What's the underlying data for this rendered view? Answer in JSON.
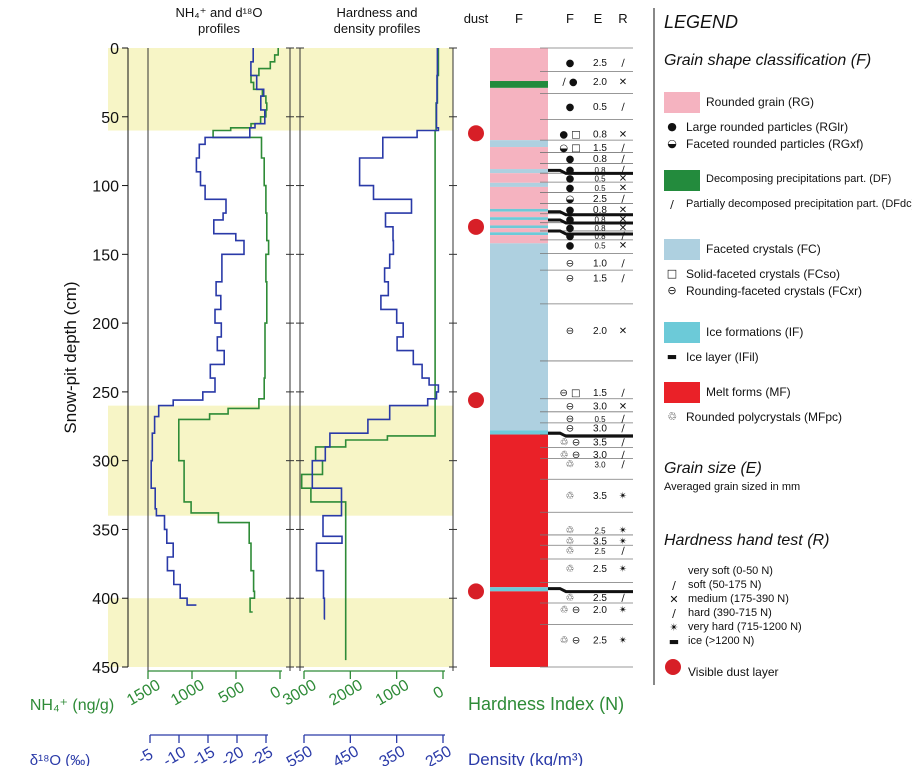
{
  "chart_data": {
    "type": "multi-panel snow-pit profile",
    "axes": {
      "depth_label": "Snow-pit depth (cm)",
      "depth_ticks": [
        0,
        50,
        100,
        150,
        200,
        250,
        300,
        350,
        400,
        450
      ],
      "depth_range": [
        0,
        450
      ],
      "panel1_title": "NH4+ and d18O profiles",
      "panel1_title_line1": "NH₄⁺ and d¹⁸O",
      "panel1_title_line2": "profiles",
      "panel2_title_line1": "Hardness and",
      "panel2_title_line2": "density profiles",
      "nh4_label": "NH₄⁺ (ng/g)",
      "nh4_ticks": [
        "1500",
        "1000",
        "500",
        "0"
      ],
      "nh4_range": [
        1500,
        0
      ],
      "d18o_label": "δ¹⁸O (‰)",
      "d18o_ticks": [
        "-5",
        "-10",
        "-15",
        "-20",
        "-25"
      ],
      "d18o_range": [
        -5,
        -25
      ],
      "hardness_label": "Hardness Index (N)",
      "hardness_ticks": [
        "3000",
        "2000",
        "1000",
        "0"
      ],
      "hardness_range": [
        3000,
        0
      ],
      "density_label": "Density (kg/m³)",
      "density_ticks": [
        "550",
        "450",
        "350",
        "250"
      ],
      "density_range": [
        550,
        250
      ]
    },
    "column_headers": {
      "dust": "dust",
      "f_bar": "F",
      "f": "F",
      "e": "E",
      "r": "R"
    },
    "shaded_depth_bands": [
      [
        0,
        60
      ],
      [
        260,
        340
      ],
      [
        400,
        450
      ]
    ],
    "dust_layers_cm": [
      62,
      130,
      256,
      395
    ],
    "series": [
      {
        "name": "NH4+",
        "unit": "ng/g",
        "color": "#2e8b37",
        "points": [
          [
            0,
            20
          ],
          [
            5,
            60
          ],
          [
            10,
            110
          ],
          [
            15,
            240
          ],
          [
            20,
            330
          ],
          [
            25,
            300
          ],
          [
            30,
            200
          ],
          [
            35,
            160
          ],
          [
            40,
            150
          ],
          [
            45,
            160
          ],
          [
            50,
            220
          ],
          [
            55,
            330
          ],
          [
            58,
            560
          ],
          [
            60,
            760
          ],
          [
            65,
            210
          ],
          [
            80,
            180
          ],
          [
            100,
            160
          ],
          [
            120,
            150
          ],
          [
            140,
            130
          ],
          [
            150,
            160
          ],
          [
            170,
            150
          ],
          [
            200,
            170
          ],
          [
            240,
            180
          ],
          [
            255,
            240
          ],
          [
            262,
            590
          ],
          [
            266,
            800
          ],
          [
            270,
            1150
          ],
          [
            300,
            1090
          ],
          [
            330,
            1010
          ],
          [
            338,
            700
          ],
          [
            345,
            350
          ],
          [
            360,
            330
          ],
          [
            380,
            300
          ],
          [
            395,
            290
          ],
          [
            400,
            340
          ],
          [
            410,
            310
          ]
        ]
      },
      {
        "name": "d18O",
        "unit": "permil",
        "color": "#2a3aa8",
        "points": [
          [
            0,
            -22.8
          ],
          [
            10,
            -22.4
          ],
          [
            20,
            -23.4
          ],
          [
            30,
            -24.6
          ],
          [
            35,
            -24.1
          ],
          [
            45,
            -24.8
          ],
          [
            55,
            -23.1
          ],
          [
            58,
            -22.2
          ],
          [
            65,
            -14.5
          ],
          [
            70,
            -13.5
          ],
          [
            80,
            -13.0
          ],
          [
            90,
            -13.7
          ],
          [
            100,
            -14.5
          ],
          [
            110,
            -18.1
          ],
          [
            120,
            -17.6
          ],
          [
            125,
            -16.0
          ],
          [
            135,
            -19.8
          ],
          [
            140,
            -21.2
          ],
          [
            150,
            -17.4
          ],
          [
            160,
            -17.4
          ],
          [
            170,
            -16.4
          ],
          [
            180,
            -17.2
          ],
          [
            190,
            -16.2
          ],
          [
            200,
            -17.3
          ],
          [
            210,
            -16.6
          ],
          [
            220,
            -17.8
          ],
          [
            230,
            -15.4
          ],
          [
            240,
            -16.2
          ],
          [
            250,
            -14.1
          ],
          [
            256,
            -9.0
          ],
          [
            260,
            -6.5
          ],
          [
            268,
            -5.8
          ],
          [
            280,
            -5.4
          ],
          [
            300,
            -5.2
          ],
          [
            320,
            -5.9
          ],
          [
            335,
            -6.1
          ],
          [
            340,
            -7.5
          ],
          [
            350,
            -7.9
          ],
          [
            360,
            -9.0
          ],
          [
            370,
            -8.0
          ],
          [
            380,
            -9.1
          ],
          [
            390,
            -10.2
          ],
          [
            400,
            -11.4
          ],
          [
            405,
            -13.0
          ]
        ]
      },
      {
        "name": "Hardness",
        "unit": "N",
        "color": "#2e8b37",
        "points": [
          [
            0,
            100
          ],
          [
            20,
            120
          ],
          [
            40,
            150
          ],
          [
            60,
            170
          ],
          [
            280,
            170
          ],
          [
            282,
            1200
          ],
          [
            285,
            2100
          ],
          [
            290,
            2750
          ],
          [
            300,
            2600
          ],
          [
            310,
            3050
          ],
          [
            320,
            2850
          ],
          [
            330,
            2100
          ],
          [
            445,
            2100
          ]
        ]
      },
      {
        "name": "Density",
        "unit": "kg/m3",
        "color": "#2a3aa8",
        "points": [
          [
            0,
            262
          ],
          [
            20,
            263
          ],
          [
            40,
            264
          ],
          [
            58,
            260
          ],
          [
            60,
            306
          ],
          [
            65,
            380
          ],
          [
            80,
            430
          ],
          [
            100,
            400
          ],
          [
            110,
            318
          ],
          [
            120,
            374
          ],
          [
            130,
            358
          ],
          [
            140,
            357
          ],
          [
            150,
            365
          ],
          [
            160,
            376
          ],
          [
            170,
            368
          ],
          [
            180,
            384
          ],
          [
            190,
            350
          ],
          [
            200,
            336
          ],
          [
            210,
            349
          ],
          [
            220,
            314
          ],
          [
            230,
            295
          ],
          [
            240,
            280
          ],
          [
            245,
            260
          ],
          [
            250,
            264
          ],
          [
            255,
            283
          ],
          [
            260,
            365
          ],
          [
            270,
            412
          ],
          [
            280,
            494
          ],
          [
            290,
            504
          ],
          [
            300,
            532
          ],
          [
            320,
            469
          ],
          [
            340,
            509
          ],
          [
            355,
            468
          ],
          [
            360,
            523
          ],
          [
            380,
            508
          ],
          [
            400,
            506
          ],
          [
            415,
            507
          ]
        ]
      }
    ],
    "stratigraphy_bar": [
      {
        "from": 0,
        "to": 24,
        "color": "#f5b3c0"
      },
      {
        "from": 24,
        "to": 29,
        "color": "#238b3d"
      },
      {
        "from": 29,
        "to": 67,
        "color": "#f5b3c0"
      },
      {
        "from": 67,
        "to": 72,
        "color": "#aed0e0"
      },
      {
        "from": 72,
        "to": 88,
        "color": "#f5b3c0"
      },
      {
        "from": 88,
        "to": 91,
        "color": "#aed0e0"
      },
      {
        "from": 91,
        "to": 98,
        "color": "#f5b3c0"
      },
      {
        "from": 98,
        "to": 101,
        "color": "#aed0e0"
      },
      {
        "from": 101,
        "to": 117,
        "color": "#f5b3c0"
      },
      {
        "from": 117,
        "to": 119,
        "color": "#6ccad8"
      },
      {
        "from": 119,
        "to": 123,
        "color": "#f5b3c0"
      },
      {
        "from": 123,
        "to": 125,
        "color": "#6ccad8"
      },
      {
        "from": 125,
        "to": 129,
        "color": "#f5b3c0"
      },
      {
        "from": 129,
        "to": 131,
        "color": "#6ccad8"
      },
      {
        "from": 131,
        "to": 134,
        "color": "#f5b3c0"
      },
      {
        "from": 134,
        "to": 136,
        "color": "#6ccad8"
      },
      {
        "from": 136,
        "to": 142,
        "color": "#f5b3c0"
      },
      {
        "from": 142,
        "to": 278,
        "color": "#aed0e0"
      },
      {
        "from": 278,
        "to": 281,
        "color": "#6ccad8"
      },
      {
        "from": 281,
        "to": 392,
        "color": "#ea2128"
      },
      {
        "from": 392,
        "to": 395,
        "color": "#6ccad8"
      },
      {
        "from": 395,
        "to": 450,
        "color": "#ea2128"
      }
    ],
    "layer_rows": [
      {
        "d": 10,
        "f": "●",
        "e": "2.5",
        "r": "∕",
        "small": false
      },
      {
        "d": 24,
        "f": "∕ ●",
        "e": "2.0",
        "r": "✕",
        "small": false
      },
      {
        "d": 42,
        "f": "●",
        "e": "0.5",
        "r": "∕",
        "small": false
      },
      {
        "d": 62,
        "f": "● □",
        "e": "0.8",
        "r": "✕",
        "small": false
      },
      {
        "d": 72,
        "f": "◒ □",
        "e": "1.5",
        "r": "∕",
        "small": false
      },
      {
        "d": 80,
        "f": "●",
        "e": "0.8",
        "r": "∕",
        "small": false
      },
      {
        "d": 88,
        "f": "●",
        "e": "0.8",
        "r": "∕",
        "small": true
      },
      {
        "d": 94,
        "f": "●",
        "e": "0.5",
        "r": "✕",
        "small": true
      },
      {
        "d": 101,
        "f": "●",
        "e": "0.5",
        "r": "✕",
        "small": true
      },
      {
        "d": 109,
        "f": "◒",
        "e": "2.5",
        "r": "∕",
        "small": false
      },
      {
        "d": 117,
        "f": "●",
        "e": "0.8",
        "r": "✕",
        "small": false
      },
      {
        "d": 124,
        "f": "●",
        "e": "0.8",
        "r": "✕",
        "small": true
      },
      {
        "d": 130,
        "f": "●",
        "e": "0.8",
        "r": "✕",
        "small": true
      },
      {
        "d": 136,
        "f": "●",
        "e": "0.8",
        "r": "∕",
        "small": true
      },
      {
        "d": 143,
        "f": "●",
        "e": "0.5",
        "r": "✕",
        "small": true
      },
      {
        "d": 156,
        "f": "⊖",
        "e": "1.0",
        "r": "∕",
        "small": false
      },
      {
        "d": 167,
        "f": "⊖",
        "e": "1.5",
        "r": "∕",
        "small": false
      },
      {
        "d": 205,
        "f": "⊖",
        "e": "2.0",
        "r": "✕",
        "small": false
      },
      {
        "d": 250,
        "f": "⊖ □",
        "e": "1.5",
        "r": "∕",
        "small": false
      },
      {
        "d": 260,
        "f": "⊖",
        "e": "3.0",
        "r": "✕",
        "small": false
      },
      {
        "d": 269,
        "f": "⊖",
        "e": "0.5",
        "r": "∕",
        "small": true
      },
      {
        "d": 276,
        "f": "⊖",
        "e": "3.0",
        "r": "∕",
        "small": false
      },
      {
        "d": 286,
        "f": "♲ ⊖",
        "e": "3.5",
        "r": "∕",
        "small": false
      },
      {
        "d": 295,
        "f": "♲ ⊖",
        "e": "3.0",
        "r": "∕",
        "small": false
      },
      {
        "d": 302,
        "f": "♲",
        "e": "3.0",
        "r": "∕",
        "small": true
      },
      {
        "d": 325,
        "f": "♲",
        "e": "3.5",
        "r": "✴",
        "small": false
      },
      {
        "d": 350,
        "f": "♲",
        "e": "2.5",
        "r": "✴",
        "small": true
      },
      {
        "d": 358,
        "f": "♲",
        "e": "3.5",
        "r": "✴",
        "small": false
      },
      {
        "d": 365,
        "f": "♲",
        "e": "2.5",
        "r": "∕",
        "small": true
      },
      {
        "d": 378,
        "f": "♲",
        "e": "2.5",
        "r": "✴",
        "small": false
      },
      {
        "d": 399,
        "f": "♲",
        "e": "2.5",
        "r": "∕",
        "small": false
      },
      {
        "d": 408,
        "f": "♲ ⊖",
        "e": "2.0",
        "r": "✴",
        "small": false
      },
      {
        "d": 430,
        "f": "♲ ⊖",
        "e": "2.5",
        "r": "✴",
        "small": false
      }
    ],
    "ice_layers_cm": [
      89,
      119,
      125,
      133,
      280,
      393
    ]
  },
  "legend": {
    "title": "LEGEND",
    "grain_shape_title": "Grain shape classification (F)",
    "groups": [
      {
        "color": "#f5b3c0",
        "label": "Rounded grain (RG)",
        "items": [
          {
            "icon": "●",
            "label": "Large rounded particles (RGlr)"
          },
          {
            "icon": "◒",
            "label": "Faceted rounded particles (RGxf)"
          }
        ]
      },
      {
        "color": "#238b3d",
        "label": "Decomposing precipitations part. (DF)",
        "items": [
          {
            "icon": "∕",
            "label": "Partially decomposed precipitation part. (DFdc)"
          }
        ]
      },
      {
        "color": "#aed0e0",
        "label": "Faceted crystals (FC)",
        "items": [
          {
            "icon": "□",
            "label": "Solid-faceted crystals (FCso)"
          },
          {
            "icon": "⊖",
            "label": "Rounding-faceted crystals (FCxr)"
          }
        ]
      },
      {
        "color": "#6ccad8",
        "label": "Ice formations (IF)",
        "items": [
          {
            "icon": "▬",
            "label": "Ice layer (IFil)"
          }
        ]
      },
      {
        "color": "#ea2128",
        "label": "Melt forms (MF)",
        "items": [
          {
            "icon": "♲",
            "label": "Rounded polycrystals (MFpc)"
          }
        ]
      }
    ],
    "grain_size_title": "Grain size (E)",
    "grain_size_desc": "Averaged grain sized in mm",
    "hardness_title": "Hardness hand test (R)",
    "hardness_items": [
      {
        "icon": "",
        "label": "very soft (0-50 N)"
      },
      {
        "icon": "∕",
        "label": "soft (50-175 N)"
      },
      {
        "icon": "✕",
        "label": "medium (175-390 N)"
      },
      {
        "icon": "∕",
        "label": "hard (390-715 N)"
      },
      {
        "icon": "✴",
        "label": "very hard (715-1200 N)"
      },
      {
        "icon": "▬",
        "label": "ice (>1200 N)"
      }
    ],
    "dust_label": "Visible dust layer",
    "colors": {
      "dust": "#d71f27",
      "shade": "#f7f5c6",
      "green": "#2e8b37",
      "blue": "#2a3aa8"
    }
  }
}
